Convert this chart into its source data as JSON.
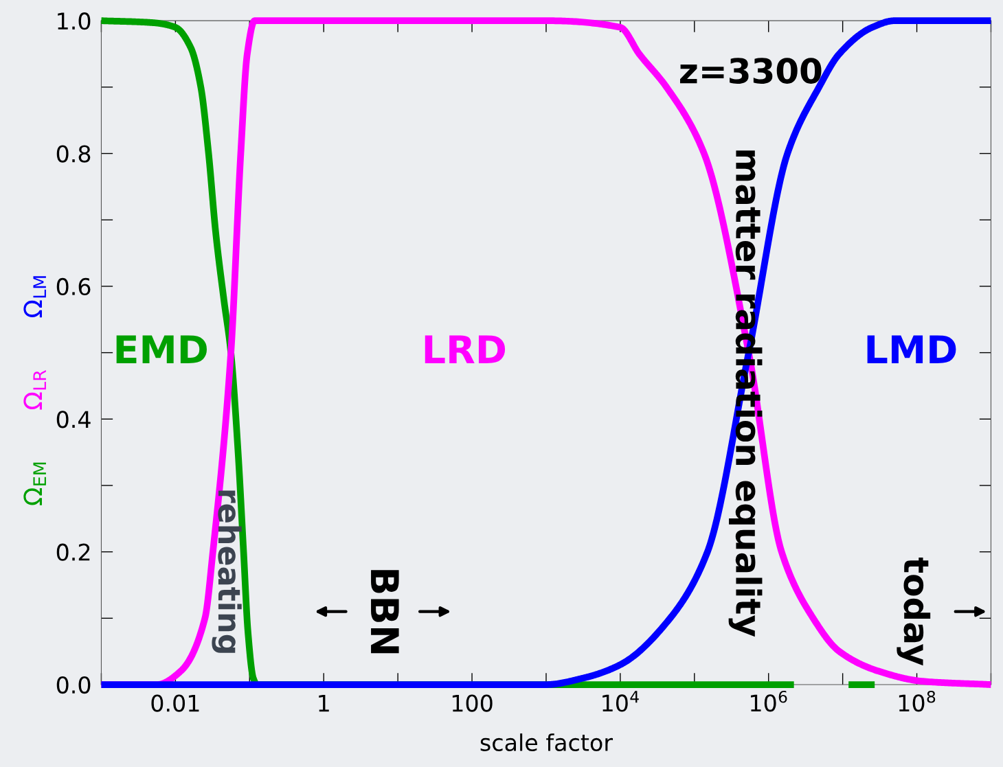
{
  "chart_data": {
    "type": "line",
    "xlabel": "scale factor",
    "log": "x",
    "legend": "left",
    "grid": false,
    "xlim": [
      0.001,
      1000000000
    ],
    "ylim": [
      0,
      1
    ],
    "xticks": [
      {
        "value": 0.01,
        "label": "0.01"
      },
      {
        "value": 1,
        "label": "1"
      },
      {
        "value": 100,
        "label": "100"
      },
      {
        "value": 10000,
        "label": "10$^{4}$"
      },
      {
        "value": 1000000,
        "label": "10$^{6}$"
      },
      {
        "value": 100000000,
        "label": "10$^{8}$"
      }
    ],
    "yticks": [
      {
        "value": 0,
        "label": "0.0"
      },
      {
        "value": 0.2,
        "label": "0.2"
      },
      {
        "value": 0.4,
        "label": "0.4"
      },
      {
        "value": 0.6,
        "label": "0.6"
      },
      {
        "value": 0.8,
        "label": "0.8"
      },
      {
        "value": 1,
        "label": "1.0"
      }
    ],
    "series": [
      {
        "name": "Ω$_{EM}$",
        "color": "#00a000",
        "x": [
          0.001,
          0.005,
          0.01,
          0.016,
          0.022,
          0.028,
          0.035,
          0.045,
          0.056,
          0.07,
          0.083,
          0.095,
          0.112,
          0.126,
          1,
          1000,
          2200000,
          5000000,
          12000000,
          27000000
        ],
        "values": [
          1,
          0.997,
          0.99,
          0.96,
          0.9,
          0.8,
          0.68,
          0.58,
          0.5,
          0.35,
          0.2,
          0.08,
          0.01,
          0,
          0,
          0,
          0,
          null,
          0,
          0
        ]
      },
      {
        "name": "Ω$_{LR}$",
        "color": "#ff00ff",
        "x": [
          0.001,
          0.0056,
          0.0117,
          0.025,
          0.032,
          0.056,
          0.076,
          0.093,
          0.117,
          0.2,
          1000,
          10000,
          18000,
          42000,
          135000,
          540000,
          1500000,
          4000000,
          9000000,
          31000000,
          120000000,
          1000000000
        ],
        "values": [
          0,
          0,
          0.02,
          0.1,
          0.2,
          0.5,
          0.8,
          0.95,
          1,
          1,
          1,
          0.99,
          0.95,
          0.9,
          0.8,
          0.5,
          0.2,
          0.1,
          0.05,
          0.02,
          0.005,
          0
        ]
      },
      {
        "name": "Ω$_{LM}$",
        "color": "#0000ff",
        "x": [
          0.001,
          1000,
          3200,
          10000,
          47000,
          150000,
          540000,
          1800000,
          4800000,
          9000000,
          25000000,
          50000000,
          1000000000
        ],
        "values": [
          0,
          0,
          0.01,
          0.03,
          0.1,
          0.2,
          0.5,
          0.8,
          0.9,
          0.95,
          0.99,
          1,
          1
        ]
      }
    ],
    "annotations": [
      "EMD",
      "LRD",
      "LMD",
      "z=3300",
      "matter radiation equality",
      "reheating",
      "BBN",
      "today"
    ]
  }
}
